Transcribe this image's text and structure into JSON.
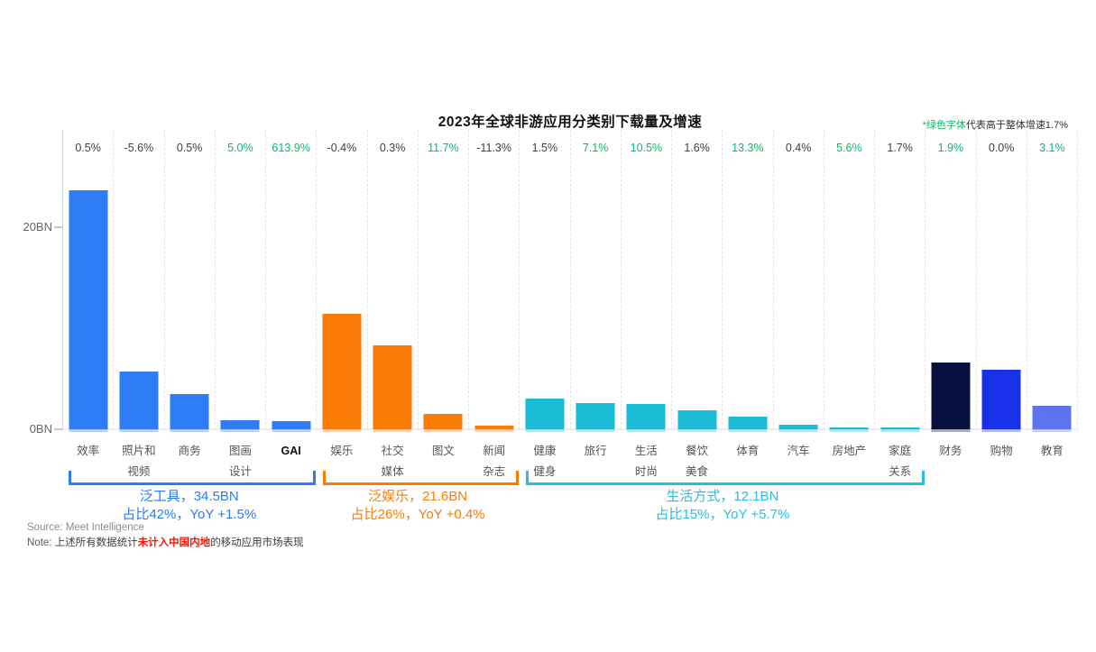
{
  "title": "2023年全球非游应用分类别下载量及增速",
  "legend_note": {
    "green_text": "*绿色字体",
    "rest_text": "代表高于整体增速1.7%"
  },
  "colors": {
    "growth_green": "#0CB96B",
    "growth_gray": "#404040",
    "tool_blue": "#2E7CF6",
    "entertainment_orange": "#FA7B05",
    "lifestyle_teal": "#1ABBD5",
    "finance_navy": "#081042",
    "shopping_blue": "#1730E8",
    "education_periwinkle": "#5E73EE"
  },
  "chart_data": {
    "type": "bar",
    "title": "2023年全球非游应用分类别下载量及增速",
    "unit": "BN downloads",
    "ylim": [
      0,
      25
    ],
    "yticks": [
      {
        "label": "0BN",
        "value": 0
      },
      {
        "label": "20BN",
        "value": 20
      }
    ],
    "grid": "vertical-dashed",
    "legend_position": "none",
    "columns": [
      {
        "category": "效率",
        "label_lines": [
          "效率"
        ],
        "value": 23.6,
        "growth": "0.5%",
        "green": false,
        "color": "#2E7CF6",
        "bold_label": false
      },
      {
        "category": "照片和视频",
        "label_lines": [
          "照片和",
          "视频"
        ],
        "value": 5.7,
        "growth": "-5.6%",
        "green": false,
        "color": "#2E7CF6",
        "bold_label": false
      },
      {
        "category": "商务",
        "label_lines": [
          "商务"
        ],
        "value": 3.5,
        "growth": "0.5%",
        "green": false,
        "color": "#2E7CF6",
        "bold_label": false
      },
      {
        "category": "图画设计",
        "label_lines": [
          "图画",
          "设计"
        ],
        "value": 0.9,
        "growth": "5.0%",
        "green": true,
        "color": "#2E7CF6",
        "bold_label": false
      },
      {
        "category": "GAI",
        "label_lines": [
          "GAI"
        ],
        "value": 0.8,
        "growth": "613.9%",
        "green": true,
        "color": "#2E7CF6",
        "bold_label": true
      },
      {
        "category": "娱乐",
        "label_lines": [
          "娱乐"
        ],
        "value": 11.4,
        "growth": "-0.4%",
        "green": false,
        "color": "#FA7B05",
        "bold_label": false
      },
      {
        "category": "社交媒体",
        "label_lines": [
          "社交",
          "媒体"
        ],
        "value": 8.3,
        "growth": "0.3%",
        "green": false,
        "color": "#FA7B05",
        "bold_label": false
      },
      {
        "category": "图文",
        "label_lines": [
          "图文"
        ],
        "value": 1.5,
        "growth": "11.7%",
        "green": true,
        "color": "#FA7B05",
        "bold_label": false
      },
      {
        "category": "新闻杂志",
        "label_lines": [
          "新闻",
          "杂志"
        ],
        "value": 0.4,
        "growth": "-11.3%",
        "green": false,
        "color": "#FA7B05",
        "bold_label": false
      },
      {
        "category": "健康健身",
        "label_lines": [
          "健康",
          "健身"
        ],
        "value": 3.0,
        "growth": "1.5%",
        "green": false,
        "color": "#1ABBD5",
        "bold_label": false
      },
      {
        "category": "旅行",
        "label_lines": [
          "旅行"
        ],
        "value": 2.6,
        "growth": "7.1%",
        "green": true,
        "color": "#1ABBD5",
        "bold_label": false
      },
      {
        "category": "生活时尚",
        "label_lines": [
          "生活",
          "时尚"
        ],
        "value": 2.5,
        "growth": "10.5%",
        "green": true,
        "color": "#1ABBD5",
        "bold_label": false
      },
      {
        "category": "餐饮美食",
        "label_lines": [
          "餐饮",
          "美食"
        ],
        "value": 1.9,
        "growth": "1.6%",
        "green": false,
        "color": "#1ABBD5",
        "bold_label": false
      },
      {
        "category": "体育",
        "label_lines": [
          "体育"
        ],
        "value": 1.25,
        "growth": "13.3%",
        "green": true,
        "color": "#1ABBD5",
        "bold_label": false
      },
      {
        "category": "汽车",
        "label_lines": [
          "汽车"
        ],
        "value": 0.45,
        "growth": "0.4%",
        "green": false,
        "color": "#1ABBD5",
        "bold_label": false
      },
      {
        "category": "房地产",
        "label_lines": [
          "房地产"
        ],
        "value": 0.2,
        "growth": "5.6%",
        "green": true,
        "color": "#1ABBD5",
        "bold_label": false
      },
      {
        "category": "家庭关系",
        "label_lines": [
          "家庭",
          "关系"
        ],
        "value": 0.2,
        "growth": "1.7%",
        "green": false,
        "color": "#1ABBD5",
        "bold_label": false
      },
      {
        "category": "财务",
        "label_lines": [
          "财务"
        ],
        "value": 6.6,
        "growth": "1.9%",
        "green": true,
        "color": "#081042",
        "bold_label": false
      },
      {
        "category": "购物",
        "label_lines": [
          "购物"
        ],
        "value": 5.9,
        "growth": "0.0%",
        "green": false,
        "color": "#1730E8",
        "bold_label": false
      },
      {
        "category": "教育",
        "label_lines": [
          "教育"
        ],
        "value": 2.3,
        "growth": "3.1%",
        "green": true,
        "color": "#5E73EE",
        "bold_label": false
      }
    ]
  },
  "groups": [
    {
      "name": "泛工具",
      "line1": "泛工具，34.5BN",
      "line2": "占比42%，YoY +1.5%",
      "color": "#2B7BF3",
      "start": 0,
      "end": 4
    },
    {
      "name": "泛娱乐",
      "line1": "泛娱乐，21.6BN",
      "line2": "占比26%，YoY +0.4%",
      "color": "#FA7B05",
      "start": 5,
      "end": 8
    },
    {
      "name": "生活方式",
      "line1": "生活方式，12.1BN",
      "line2": "占比15%，YoY +5.7%",
      "color": "#26BEE2",
      "start": 9,
      "end": 16
    }
  ],
  "source": "Source: Meet Intelligence",
  "footnote": {
    "label": "Note: ",
    "pre": "上述所有数据统计",
    "highlight": "未计入中国内地",
    "post": "的移动应用市场表现"
  }
}
